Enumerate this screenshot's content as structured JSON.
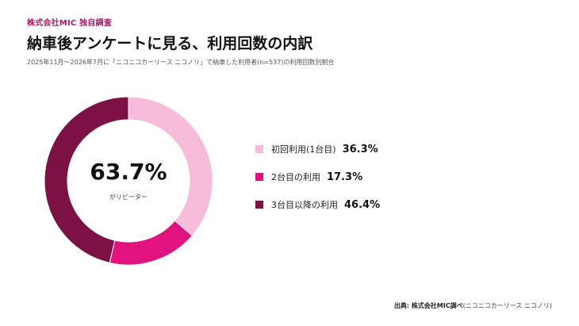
{
  "header": {
    "brand": "株式会社MIC 独自調査",
    "title": "納車後アンケートに見る、利用回数の内訳",
    "subtitle": "2025年11月～2026年7月に「ニコニコカーリース ニコノリ」で納車した利用者(n=537)の利用回数別割合"
  },
  "center": {
    "value": "63.7%",
    "label": "がリピーター"
  },
  "chart_data": {
    "type": "pie",
    "donut": true,
    "start_angle": "12 o'clock",
    "direction": "clockwise",
    "categories": [
      "初回利用(1台目)",
      "2台目の利用",
      "3台目以降の利用"
    ],
    "values": [
      36.3,
      17.3,
      46.4
    ],
    "value_labels": [
      "36.3%",
      "17.3%",
      "46.4%"
    ],
    "colors": [
      "#f6bcd9",
      "#e0137f",
      "#7c1144"
    ],
    "legend": "right"
  },
  "footer": {
    "source_prefix": "出典: 株式会社MIC調べ",
    "source_detail": "(ニコニコカーリース ニコノリ)"
  }
}
